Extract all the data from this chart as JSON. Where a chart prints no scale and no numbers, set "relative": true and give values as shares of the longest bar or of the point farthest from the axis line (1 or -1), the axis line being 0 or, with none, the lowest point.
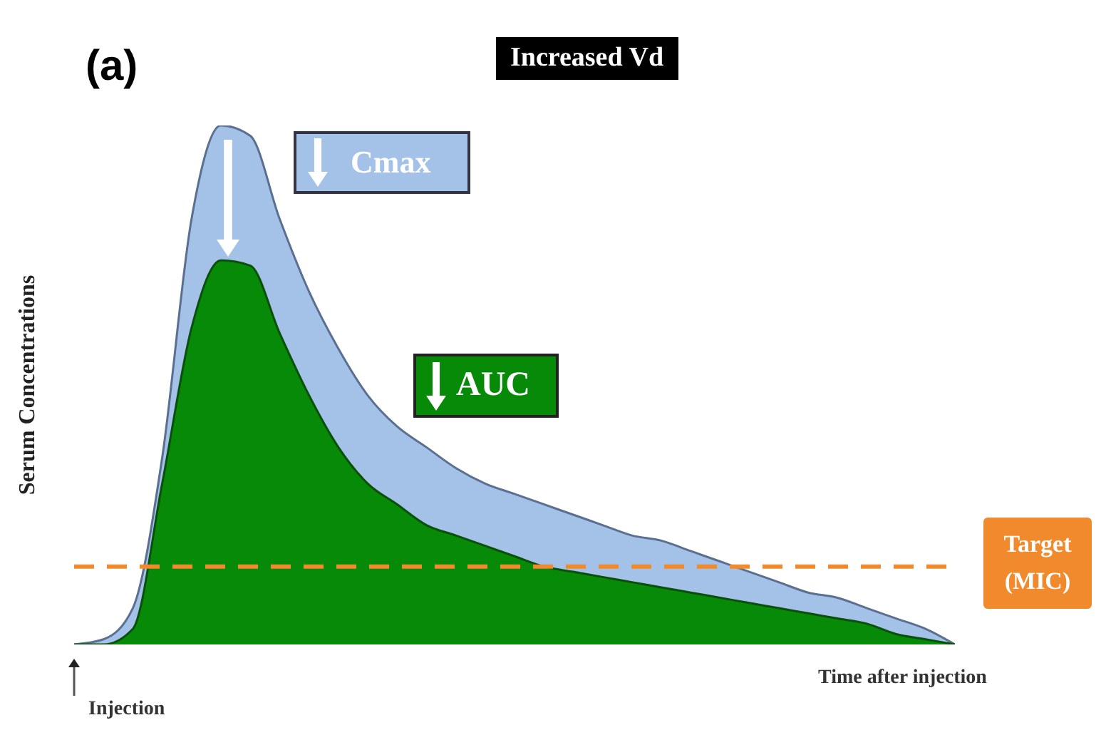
{
  "chart_data": {
    "type": "area",
    "title": "Increased Vd",
    "xlabel": "Time after injection",
    "ylabel": "Serum Concentrations",
    "relative": true,
    "categories": [
      null,
      null,
      null,
      null,
      null,
      null,
      null,
      null,
      null,
      null,
      null,
      null,
      null,
      null,
      null,
      null,
      null,
      null,
      null,
      null,
      null,
      null,
      null,
      null,
      null,
      null,
      null,
      null,
      null,
      null,
      null
    ],
    "series": [
      {
        "color": "#a4c2e8",
        "values": [
          0,
          0.01,
          0.07,
          0.36,
          0.82,
          1,
          0.98,
          0.82,
          0.68,
          0.57,
          0.48,
          0.42,
          0.38,
          0.34,
          0.31,
          0.29,
          0.27,
          0.25,
          0.23,
          0.21,
          0.2,
          0.18,
          0.16,
          0.14,
          0.12,
          0.1,
          0.09,
          0.07,
          0.05,
          0.03,
          0
        ]
      },
      {
        "color": "#078a07",
        "values": [
          0,
          0,
          0.03,
          0.31,
          0.61,
          0.74,
          0.73,
          0.6,
          0.48,
          0.38,
          0.31,
          0.27,
          0.23,
          0.21,
          0.19,
          0.17,
          0.15,
          0.14,
          0.13,
          0.12,
          0.11,
          0.1,
          0.09,
          0.08,
          0.07,
          0.06,
          0.05,
          0.04,
          0.02,
          0.01,
          0
        ]
      }
    ],
    "ref_lines": [
      {
        "axis": "y",
        "value": 0.15,
        "label": "Target (MIC)",
        "color": "#f08a2c",
        "line_style": "dashed"
      }
    ],
    "annotations": [
      "(a)",
      "Cmax",
      "AUC",
      "Injection"
    ],
    "legend": false
  }
}
